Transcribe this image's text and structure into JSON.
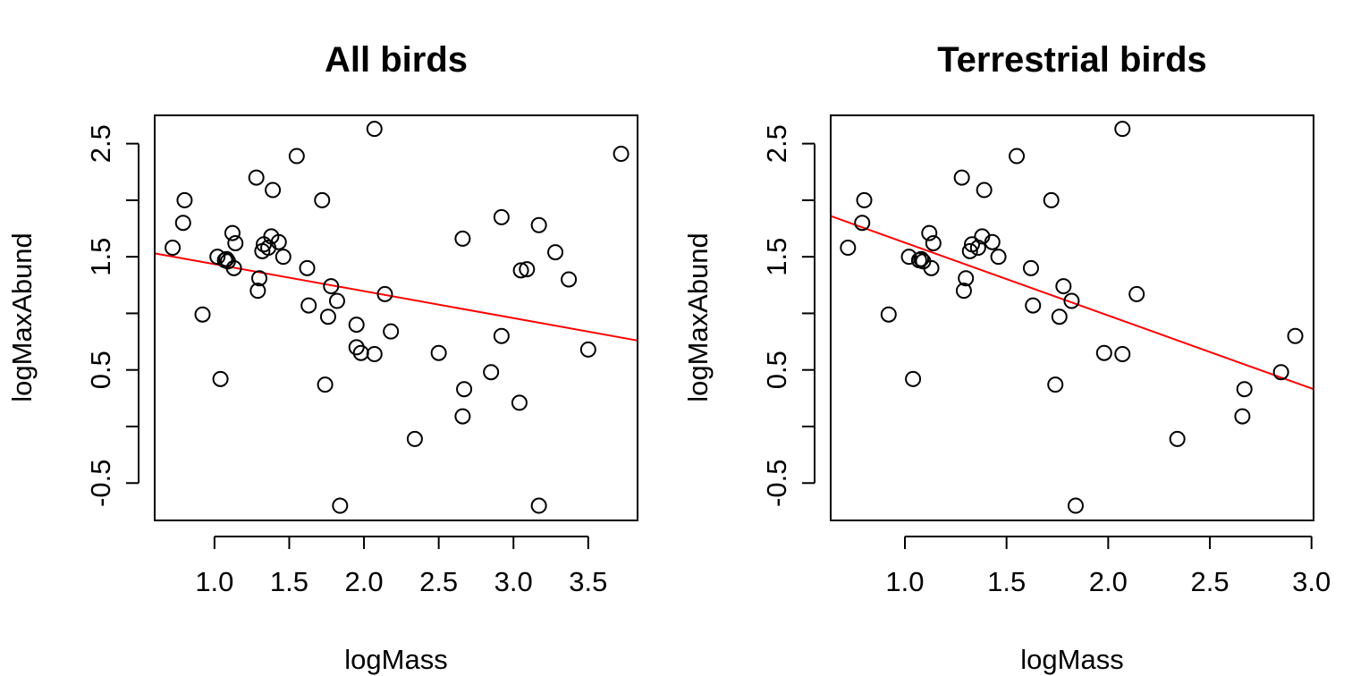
{
  "chart_data": [
    {
      "type": "scatter",
      "title": "All birds",
      "xlabel": "logMass",
      "ylabel": "logMaxAbund",
      "xlim": [
        0.6,
        3.83
      ],
      "ylim": [
        -0.83,
        2.75
      ],
      "xticks": [
        1.0,
        1.5,
        2.0,
        2.5,
        3.0,
        3.5
      ],
      "xtick_labels": [
        "1.0",
        "1.5",
        "2.0",
        "2.5",
        "3.0",
        "3.5"
      ],
      "yticks": [
        -0.5,
        0.5,
        1.5,
        2.5
      ],
      "ytick_labels": [
        "-0.5",
        "0.5",
        "1.5",
        "2.5"
      ],
      "yminor_ticks": [
        0.0,
        1.0,
        2.0
      ],
      "grid": false,
      "marker": "open-circle",
      "point_color": "#000000",
      "fit_line": {
        "color": "#ff0000",
        "x": [
          0.6,
          3.83
        ],
        "y": [
          1.53,
          0.76
        ]
      },
      "points": [
        [
          0.72,
          1.58
        ],
        [
          0.79,
          1.8
        ],
        [
          0.8,
          2.0
        ],
        [
          0.92,
          0.99
        ],
        [
          1.02,
          1.5
        ],
        [
          1.04,
          0.42
        ],
        [
          1.07,
          1.47
        ],
        [
          1.08,
          1.48
        ],
        [
          1.09,
          1.46
        ],
        [
          1.12,
          1.71
        ],
        [
          1.13,
          1.4
        ],
        [
          1.14,
          1.62
        ],
        [
          1.28,
          2.2
        ],
        [
          1.29,
          1.2
        ],
        [
          1.3,
          1.31
        ],
        [
          1.32,
          1.55
        ],
        [
          1.33,
          1.61
        ],
        [
          1.36,
          1.58
        ],
        [
          1.38,
          1.68
        ],
        [
          1.39,
          2.09
        ],
        [
          1.43,
          1.63
        ],
        [
          1.46,
          1.5
        ],
        [
          1.55,
          2.39
        ],
        [
          1.62,
          1.4
        ],
        [
          1.63,
          1.07
        ],
        [
          1.72,
          2.0
        ],
        [
          1.74,
          0.37
        ],
        [
          1.76,
          0.97
        ],
        [
          1.78,
          1.24
        ],
        [
          1.82,
          1.11
        ],
        [
          1.84,
          -0.7
        ],
        [
          1.95,
          0.9
        ],
        [
          1.95,
          0.7
        ],
        [
          1.98,
          0.65
        ],
        [
          2.07,
          0.64
        ],
        [
          2.07,
          2.63
        ],
        [
          2.14,
          1.17
        ],
        [
          2.18,
          0.84
        ],
        [
          2.34,
          -0.11
        ],
        [
          2.5,
          0.65
        ],
        [
          2.66,
          1.66
        ],
        [
          2.66,
          0.09
        ],
        [
          2.67,
          0.33
        ],
        [
          2.85,
          0.48
        ],
        [
          2.92,
          1.85
        ],
        [
          2.92,
          0.8
        ],
        [
          3.04,
          0.21
        ],
        [
          3.05,
          1.38
        ],
        [
          3.09,
          1.39
        ],
        [
          3.17,
          1.78
        ],
        [
          3.17,
          -0.7
        ],
        [
          3.28,
          1.54
        ],
        [
          3.37,
          1.3
        ],
        [
          3.5,
          0.68
        ],
        [
          3.72,
          2.41
        ]
      ]
    },
    {
      "type": "scatter",
      "title": "Terrestrial birds",
      "xlabel": "logMass",
      "ylabel": "logMaxAbund",
      "xlim": [
        0.635,
        3.01
      ],
      "ylim": [
        -0.83,
        2.75
      ],
      "xticks": [
        1.0,
        1.5,
        2.0,
        2.5,
        3.0
      ],
      "xtick_labels": [
        "1.0",
        "1.5",
        "2.0",
        "2.5",
        "3.0"
      ],
      "yticks": [
        -0.5,
        0.5,
        1.5,
        2.5
      ],
      "ytick_labels": [
        "-0.5",
        "0.5",
        "1.5",
        "2.5"
      ],
      "yminor_ticks": [
        0.0,
        1.0,
        2.0
      ],
      "grid": false,
      "marker": "open-circle",
      "point_color": "#000000",
      "fit_line": {
        "color": "#ff0000",
        "x": [
          0.635,
          3.01
        ],
        "y": [
          1.86,
          0.33
        ]
      },
      "points": [
        [
          0.72,
          1.58
        ],
        [
          0.79,
          1.8
        ],
        [
          0.8,
          2.0
        ],
        [
          0.92,
          0.99
        ],
        [
          1.02,
          1.5
        ],
        [
          1.04,
          0.42
        ],
        [
          1.07,
          1.47
        ],
        [
          1.08,
          1.48
        ],
        [
          1.09,
          1.46
        ],
        [
          1.12,
          1.71
        ],
        [
          1.13,
          1.4
        ],
        [
          1.14,
          1.62
        ],
        [
          1.28,
          2.2
        ],
        [
          1.29,
          1.2
        ],
        [
          1.3,
          1.31
        ],
        [
          1.32,
          1.55
        ],
        [
          1.33,
          1.61
        ],
        [
          1.36,
          1.58
        ],
        [
          1.38,
          1.68
        ],
        [
          1.39,
          2.09
        ],
        [
          1.43,
          1.63
        ],
        [
          1.46,
          1.5
        ],
        [
          1.55,
          2.39
        ],
        [
          1.62,
          1.4
        ],
        [
          1.63,
          1.07
        ],
        [
          1.72,
          2.0
        ],
        [
          1.74,
          0.37
        ],
        [
          1.76,
          0.97
        ],
        [
          1.78,
          1.24
        ],
        [
          1.82,
          1.11
        ],
        [
          1.84,
          -0.7
        ],
        [
          1.98,
          0.65
        ],
        [
          2.07,
          0.64
        ],
        [
          2.07,
          2.63
        ],
        [
          2.14,
          1.17
        ],
        [
          2.34,
          -0.11
        ],
        [
          2.66,
          0.09
        ],
        [
          2.67,
          0.33
        ],
        [
          2.85,
          0.48
        ],
        [
          2.92,
          0.8
        ]
      ]
    }
  ]
}
